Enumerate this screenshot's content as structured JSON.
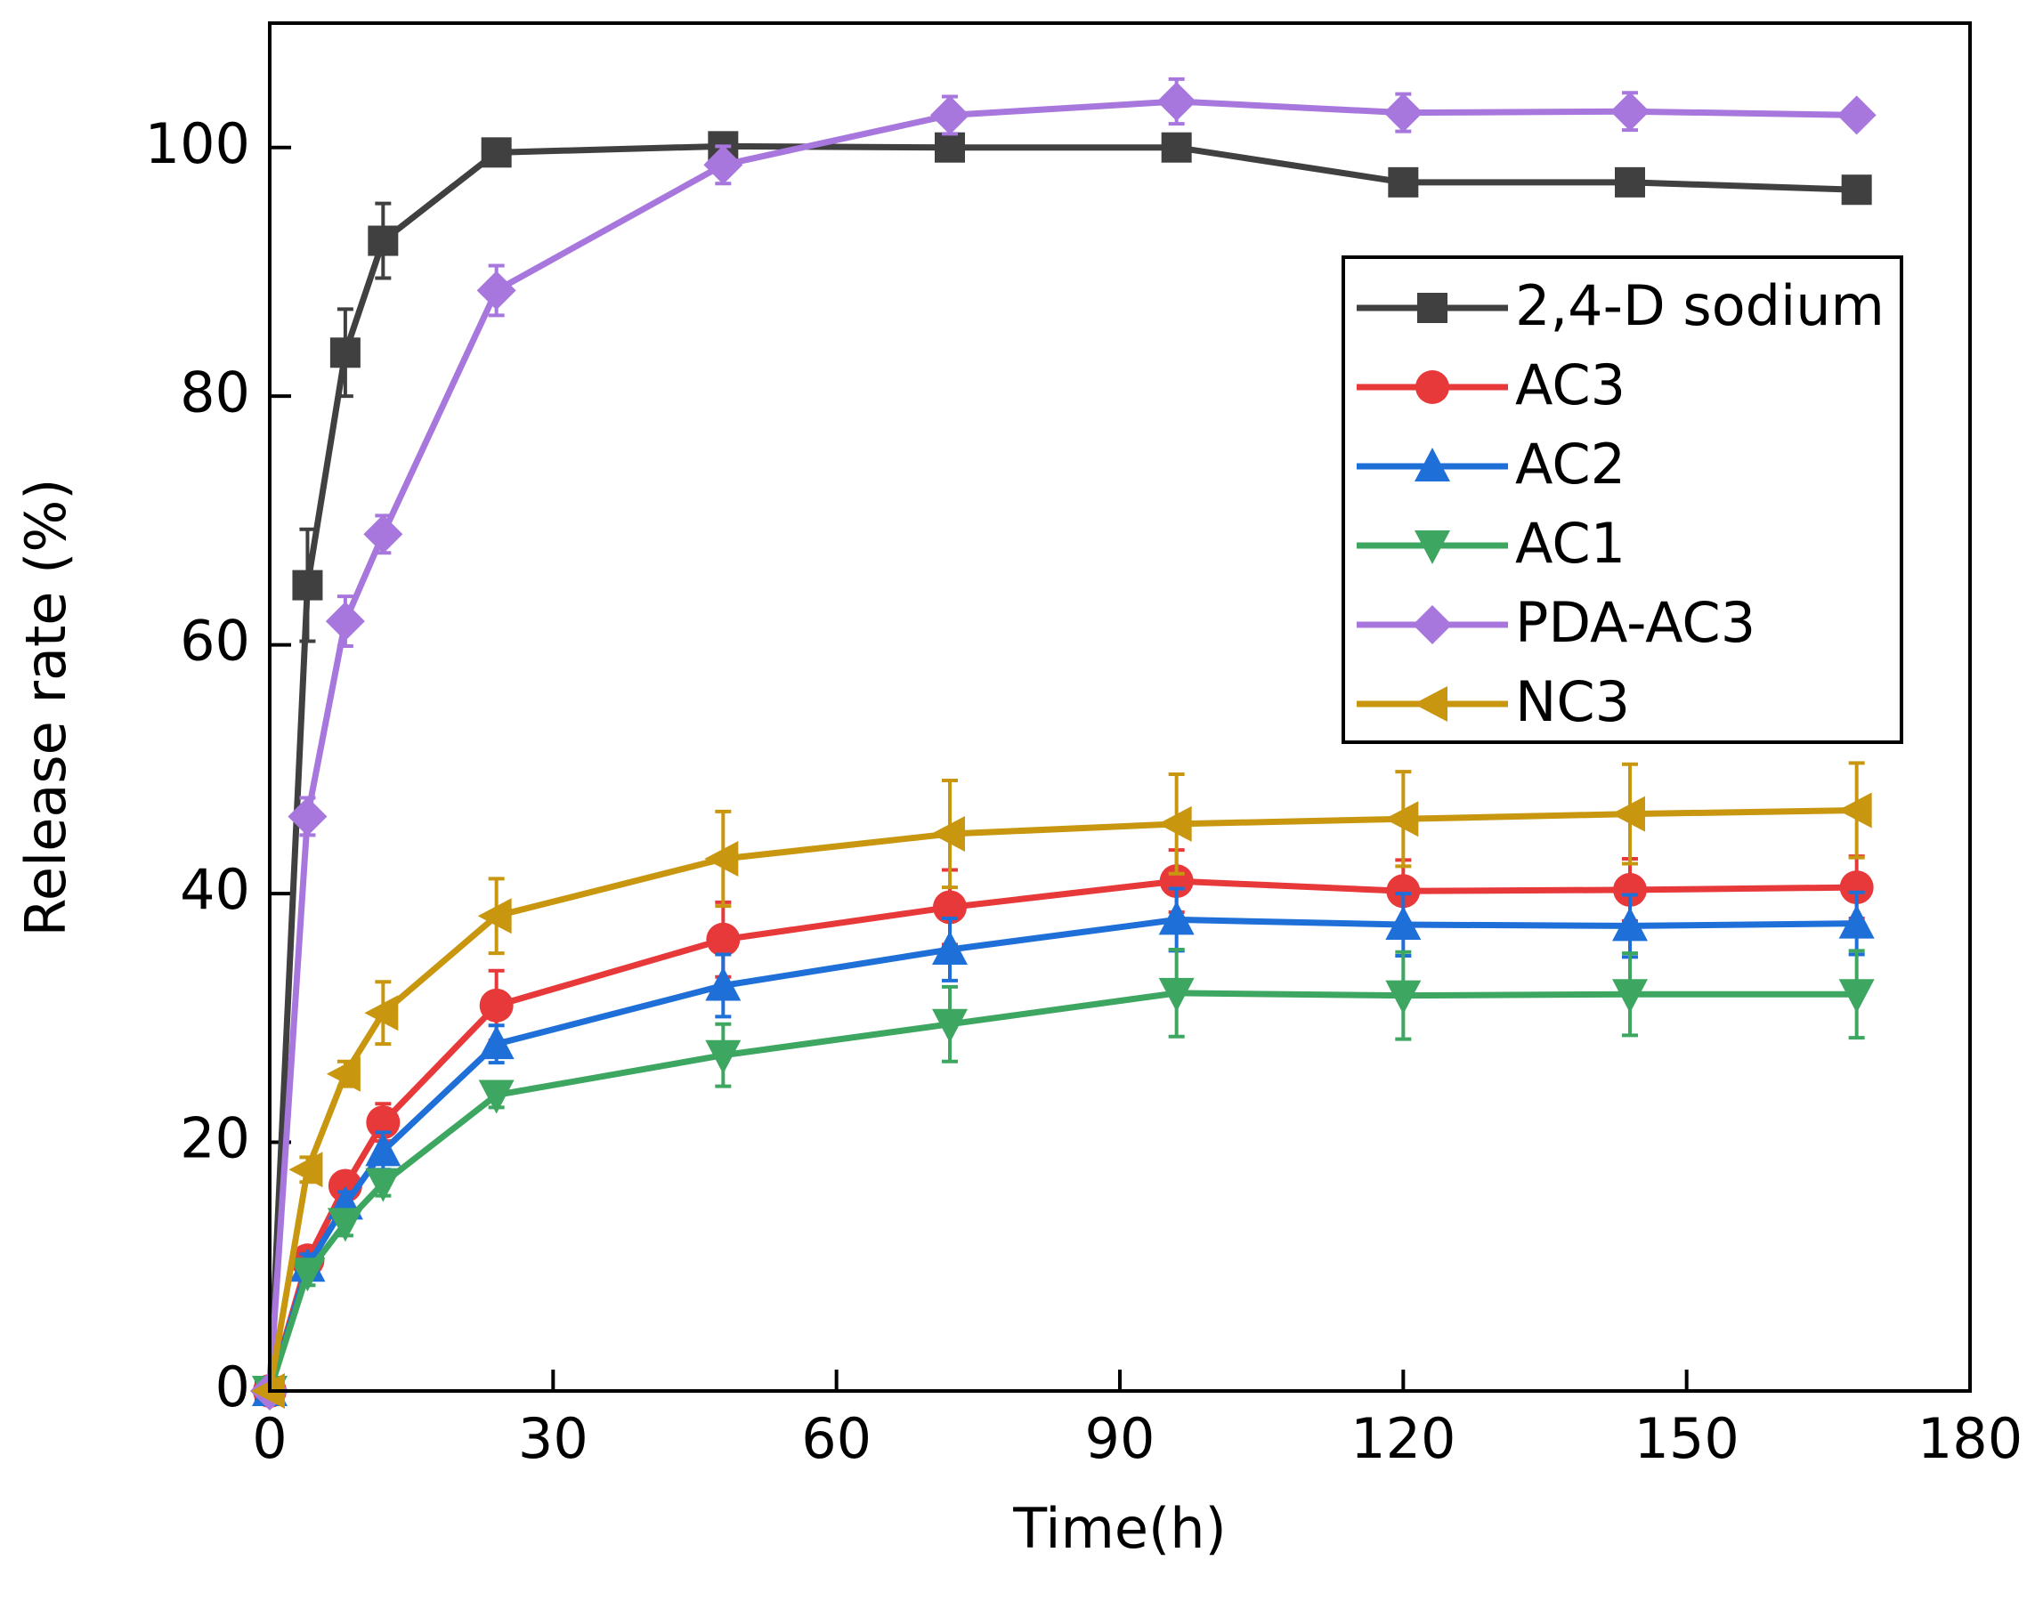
{
  "chart_data": {
    "type": "line",
    "x_label": "Time(h)",
    "y_label": "Release rate (%)",
    "x": [
      0,
      4,
      8,
      12,
      24,
      48,
      72,
      96,
      120,
      144,
      168
    ],
    "xlim": [
      0,
      180
    ],
    "xticks": [
      0,
      30,
      60,
      90,
      120,
      150,
      180
    ],
    "ylim": [
      0,
      110
    ],
    "yticks": [
      0,
      20,
      40,
      60,
      80,
      100
    ],
    "legend": "upper right",
    "series": [
      {
        "name": "2,4-D sodium",
        "color": "#404040",
        "marker": "square",
        "values": [
          0,
          64.8,
          83.5,
          92.5,
          99.6,
          100.1,
          100,
          100,
          97.2,
          97.2,
          96.6
        ],
        "errors": [
          0,
          4.5,
          3.5,
          3,
          0.6,
          0.6,
          0.6,
          0.6,
          0.6,
          0.6,
          0.6
        ]
      },
      {
        "name": "AC3",
        "color": "#e8393a",
        "marker": "circle",
        "values": [
          0,
          10.5,
          16.5,
          21.6,
          31,
          36.3,
          38.9,
          41,
          40.2,
          40.3,
          40.5
        ],
        "errors": [
          0,
          1,
          1,
          1.5,
          2.8,
          3,
          3,
          2.5,
          2.5,
          2.5,
          2.5
        ]
      },
      {
        "name": "AC2",
        "color": "#1f6fd9",
        "marker": "triangle-up",
        "values": [
          0,
          10,
          15,
          19.3,
          27.9,
          32.6,
          35.5,
          37.9,
          37.5,
          37.4,
          37.6
        ],
        "errors": [
          0,
          1,
          1,
          1.5,
          1.5,
          2.5,
          2.5,
          2.5,
          2.5,
          2.5,
          2.5
        ]
      },
      {
        "name": "AC1",
        "color": "#3da660",
        "marker": "triangle-down",
        "values": [
          0,
          9.5,
          13.5,
          16.7,
          23.8,
          27,
          29.5,
          32,
          31.8,
          31.9,
          31.9
        ],
        "errors": [
          0,
          1,
          1,
          1,
          1,
          2.5,
          3,
          3.5,
          3.5,
          3.3,
          3.5
        ]
      },
      {
        "name": "PDA-AC3",
        "color": "#a777dd",
        "marker": "diamond",
        "values": [
          0,
          46.2,
          61.9,
          68.9,
          88.5,
          98.6,
          102.6,
          103.7,
          102.8,
          102.9,
          102.6
        ],
        "errors": [
          0,
          1.5,
          2,
          1.5,
          2,
          1.5,
          1.5,
          1.8,
          1.5,
          1.5,
          0.5
        ]
      },
      {
        "name": "NC3",
        "color": "#c8960f",
        "marker": "triangle-left",
        "values": [
          0,
          17.8,
          25.5,
          30.4,
          38.2,
          42.8,
          44.8,
          45.6,
          46,
          46.4,
          46.7
        ],
        "errors": [
          0,
          1,
          1,
          2.5,
          3,
          3.8,
          4.3,
          4,
          3.8,
          4,
          3.8
        ]
      }
    ]
  }
}
